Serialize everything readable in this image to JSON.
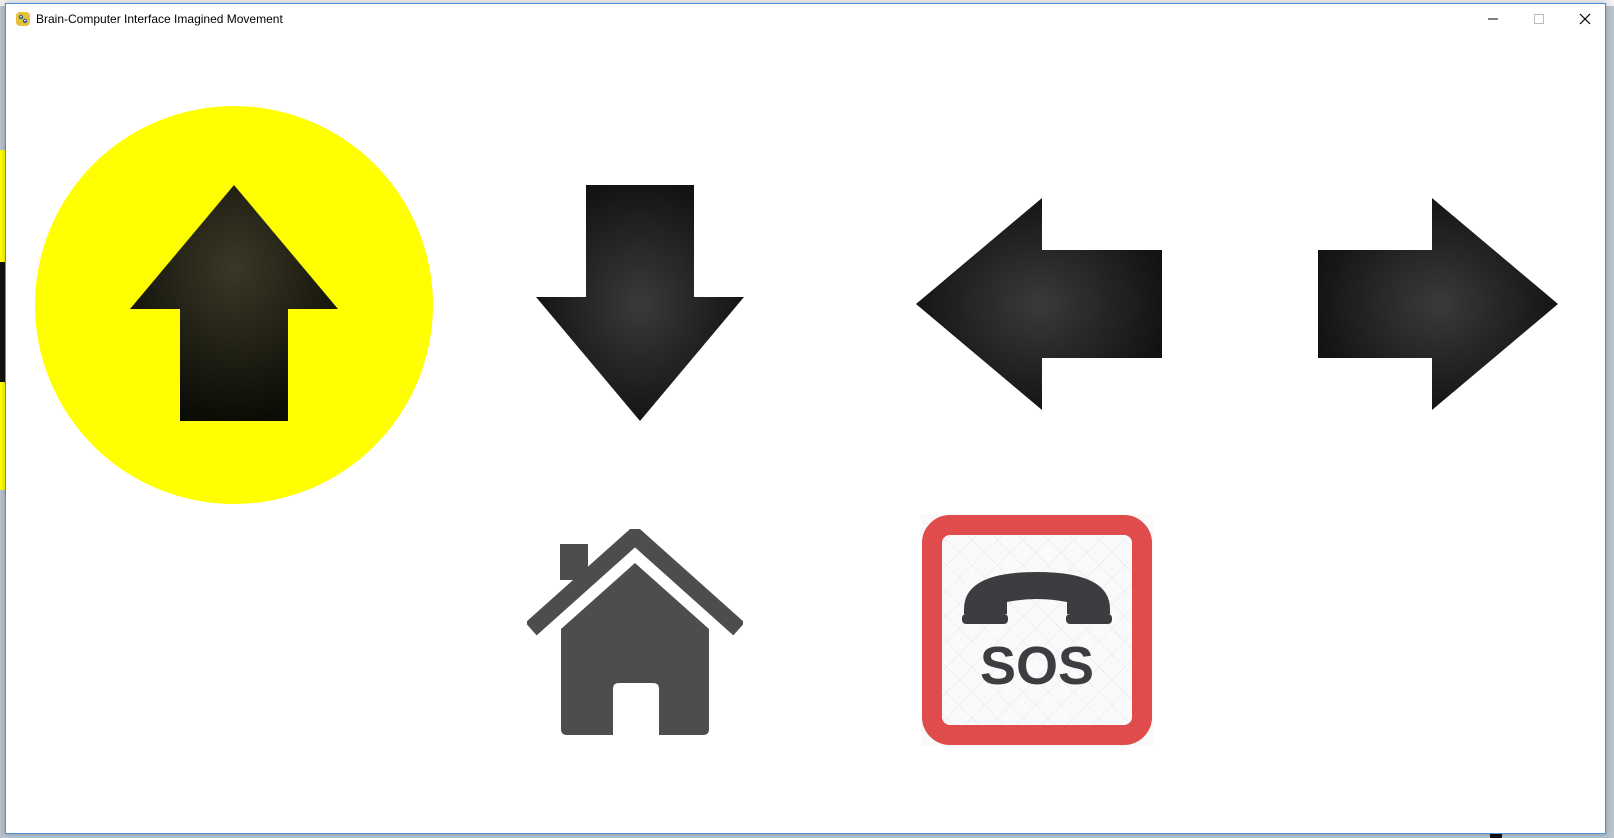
{
  "window": {
    "title": "Brain-Computer Interface Imagined Movement",
    "controls": [
      "minimize",
      "maximize",
      "close"
    ]
  },
  "icons": {
    "app": "python-icon",
    "up": "arrow-up-icon",
    "down": "arrow-down-icon",
    "left": "arrow-left-icon",
    "right": "arrow-right-icon",
    "home": "home-icon",
    "sos": "sos-phone-icon"
  },
  "selection": {
    "active_option": "up",
    "highlight_color": "#ffff00"
  },
  "sos": {
    "label": "SOS",
    "border_color": "#e04b4b",
    "icon_color": "#3b3d40"
  },
  "colors": {
    "arrow": "#1c1c1c",
    "house": "#4d4d4d"
  }
}
